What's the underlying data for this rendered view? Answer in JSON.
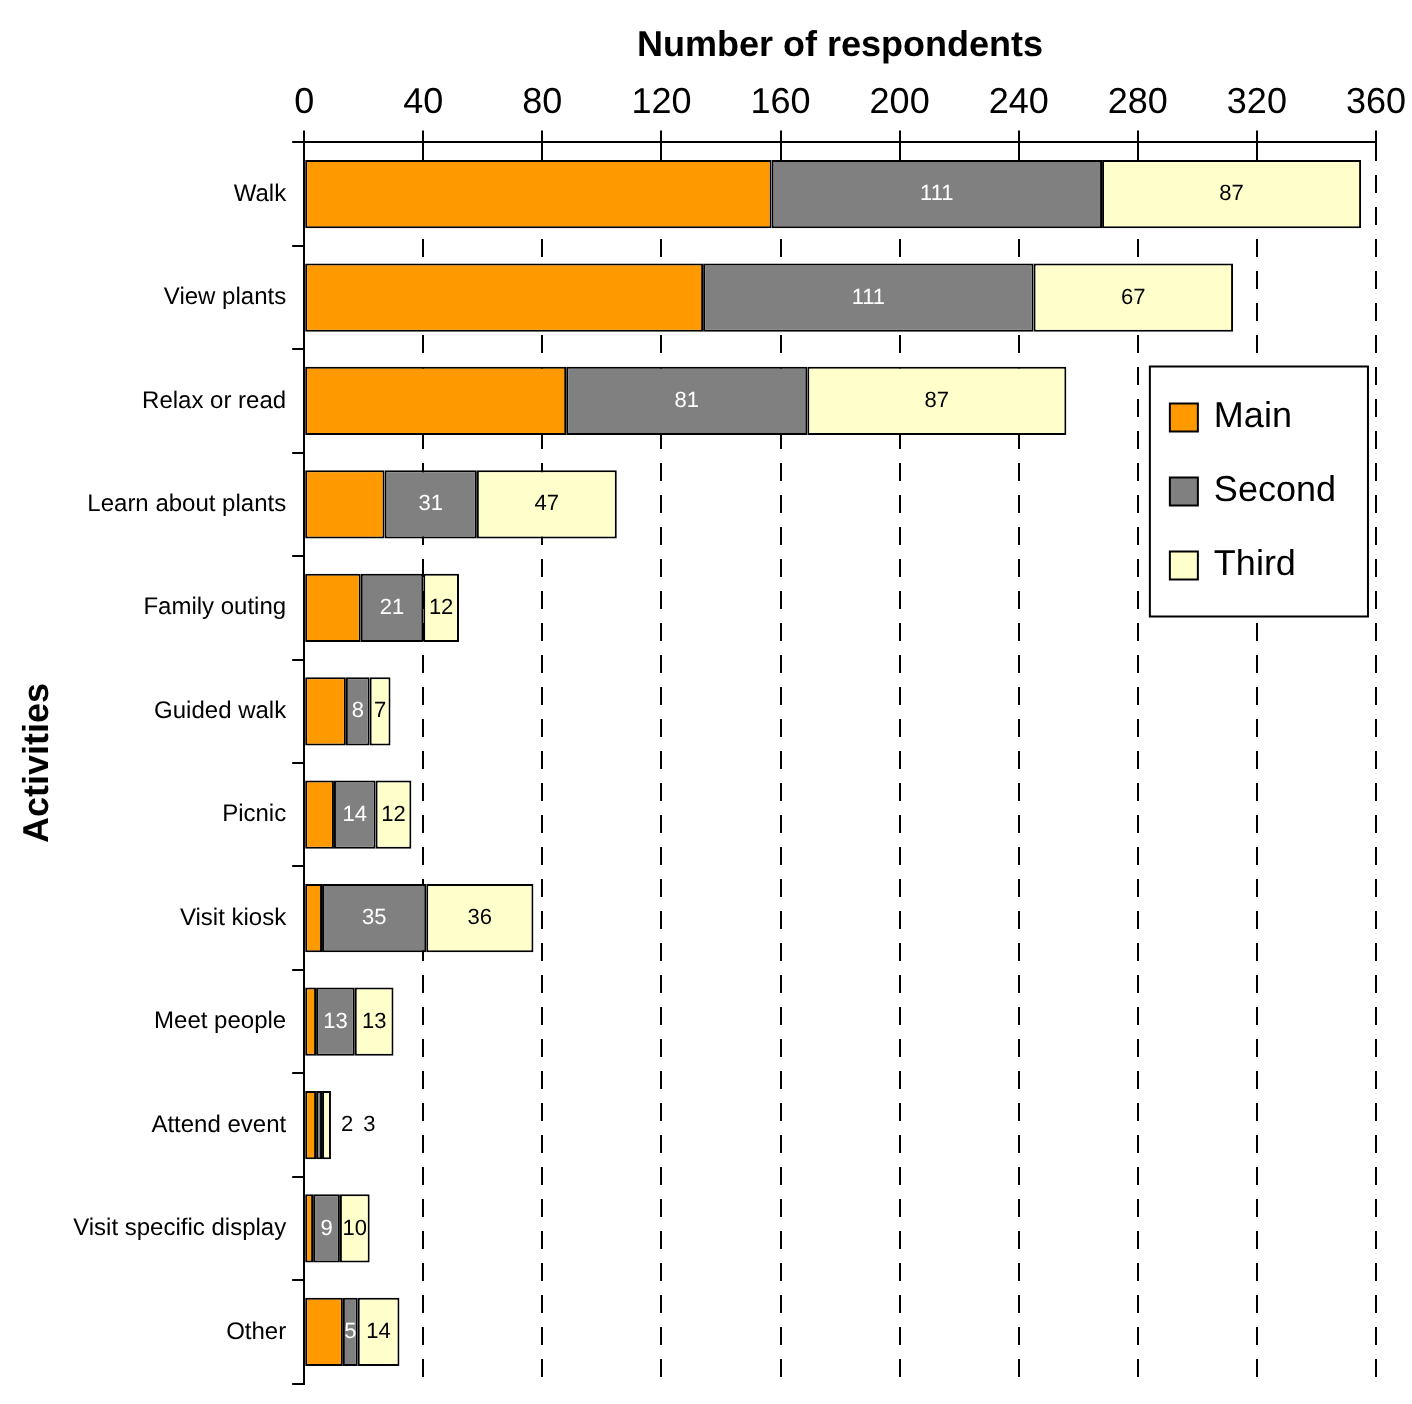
{
  "chart_data": {
    "type": "bar",
    "orientation": "horizontal",
    "stacked": true,
    "xlabel": "Number of respondents",
    "ylabel": "Activities",
    "categories": [
      "Walk",
      "View plants",
      "Relax or read",
      "Learn about plants",
      "Family outing",
      "Guided walk",
      "Picnic",
      "Visit kiosk",
      "Meet people",
      "Attend event",
      "Visit specific display",
      "Other"
    ],
    "series": [
      {
        "name": "Main",
        "color": "#ff9900",
        "values": [
          157,
          134,
          88,
          27,
          19,
          14,
          10,
          6,
          4,
          4,
          3,
          13
        ]
      },
      {
        "name": "Second",
        "color": "#808080",
        "values": [
          111,
          111,
          81,
          31,
          21,
          8,
          14,
          35,
          13,
          2,
          9,
          5
        ],
        "value_labels": [
          "111",
          "111",
          "81",
          "31",
          "21",
          "8",
          "14",
          "35",
          "13",
          "2",
          "9",
          "5"
        ]
      },
      {
        "name": "Third",
        "color": "#ffffcc",
        "values": [
          87,
          67,
          87,
          47,
          12,
          7,
          12,
          36,
          13,
          3,
          10,
          14
        ],
        "value_labels": [
          "87",
          "67",
          "87",
          "47",
          "12",
          "7",
          "12",
          "36",
          "13",
          "3",
          "10",
          "14"
        ]
      }
    ],
    "xlim": [
      0,
      360
    ],
    "xticks": [
      0,
      40,
      80,
      120,
      160,
      200,
      240,
      280,
      320,
      360
    ],
    "grid": "x",
    "legend": "top right"
  }
}
